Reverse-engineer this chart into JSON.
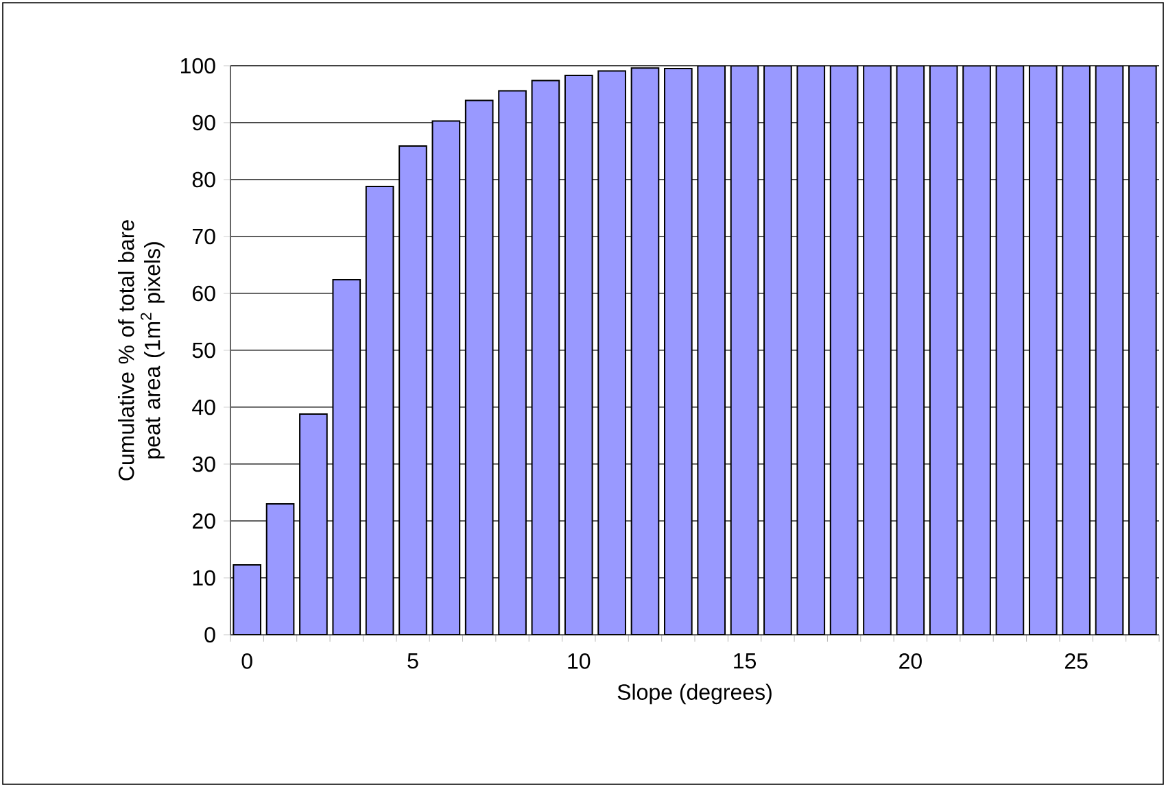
{
  "chart_data": {
    "type": "bar",
    "xlabel": "Slope (degrees)",
    "ylabel": "Cumulative % of total bare peat area (1m$^{2}$ pixels)",
    "categories": [
      "0",
      null,
      null,
      null,
      null,
      "5",
      null,
      null,
      null,
      null,
      "10",
      null,
      null,
      null,
      null,
      "15",
      null,
      null,
      null,
      null,
      "20",
      null,
      null,
      null,
      null,
      "25",
      null,
      null
    ],
    "values": [
      12.3,
      23.0,
      38.8,
      62.4,
      78.8,
      85.9,
      90.3,
      93.9,
      95.6,
      97.4,
      98.3,
      99.1,
      99.6,
      99.5,
      100,
      100,
      100,
      100,
      100,
      100,
      100,
      100,
      100,
      100,
      100,
      100,
      100,
      100
    ],
    "color": "#9999ff",
    "ylim": [
      0,
      100
    ],
    "yticks": [
      0,
      10,
      20,
      30,
      40,
      50,
      60,
      70,
      80,
      90,
      100
    ],
    "grid": "y"
  }
}
